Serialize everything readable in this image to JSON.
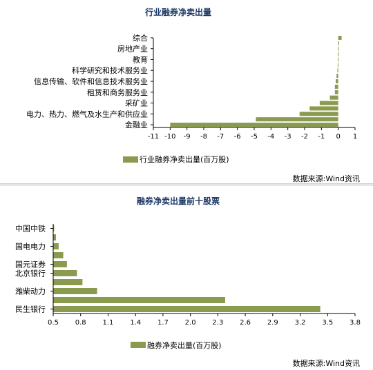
{
  "chart_data": [
    {
      "type": "bar",
      "orientation": "horizontal",
      "title": "行业融券净卖出量",
      "categories": [
        "金融业",
        "",
        "电力、热力、燃气及水生产和供应业",
        "",
        "采矿业",
        "",
        "租赁和商务服务业",
        "",
        "信息传输、软件和信息技术服务业",
        "",
        "科学研究和技术服务业",
        "",
        "教育",
        "",
        "房地产业",
        "",
        "综合"
      ],
      "series": [
        {
          "name": "行业融券净卖出量(百万股)",
          "values": [
            -10.0,
            -4.9,
            -2.3,
            -1.7,
            -1.1,
            -0.5,
            -0.2,
            -0.2,
            -0.15,
            -0.1,
            -0.05,
            -0.03,
            -0.02,
            -0.01,
            0.02,
            0.05,
            0.2
          ]
        }
      ],
      "xlim": [
        -11,
        1
      ],
      "xticks": [
        "-11",
        "-10",
        "-9",
        "-8",
        "-7",
        "-6",
        "-5",
        "-4",
        "-3",
        "-2",
        "-1",
        "0",
        "1"
      ],
      "legend_position": "bottom",
      "source": "数据来源:Wind资讯",
      "color": "#8a9a4e"
    },
    {
      "type": "bar",
      "orientation": "horizontal",
      "title": "融券净卖出量前十股票",
      "categories": [
        "民生银行",
        "",
        "潍柴动力",
        "",
        "北京银行",
        "国元证券",
        "",
        "国电电力",
        "",
        "中国中铁"
      ],
      "series": [
        {
          "name": "融券净卖出量(百万股)",
          "values": [
            3.42,
            2.38,
            0.98,
            0.82,
            0.76,
            0.65,
            0.61,
            0.56,
            0.53,
            0.51
          ]
        }
      ],
      "xlim": [
        0.5,
        3.8
      ],
      "xticks": [
        "0.5",
        "0.8",
        "1.1",
        "1.4",
        "1.7",
        "2.0",
        "2.3",
        "2.6",
        "2.9",
        "3.2",
        "3.5",
        "3.8"
      ],
      "legend_position": "bottom",
      "source": "数据来源:Wind资讯",
      "color": "#8a9a4e"
    }
  ]
}
